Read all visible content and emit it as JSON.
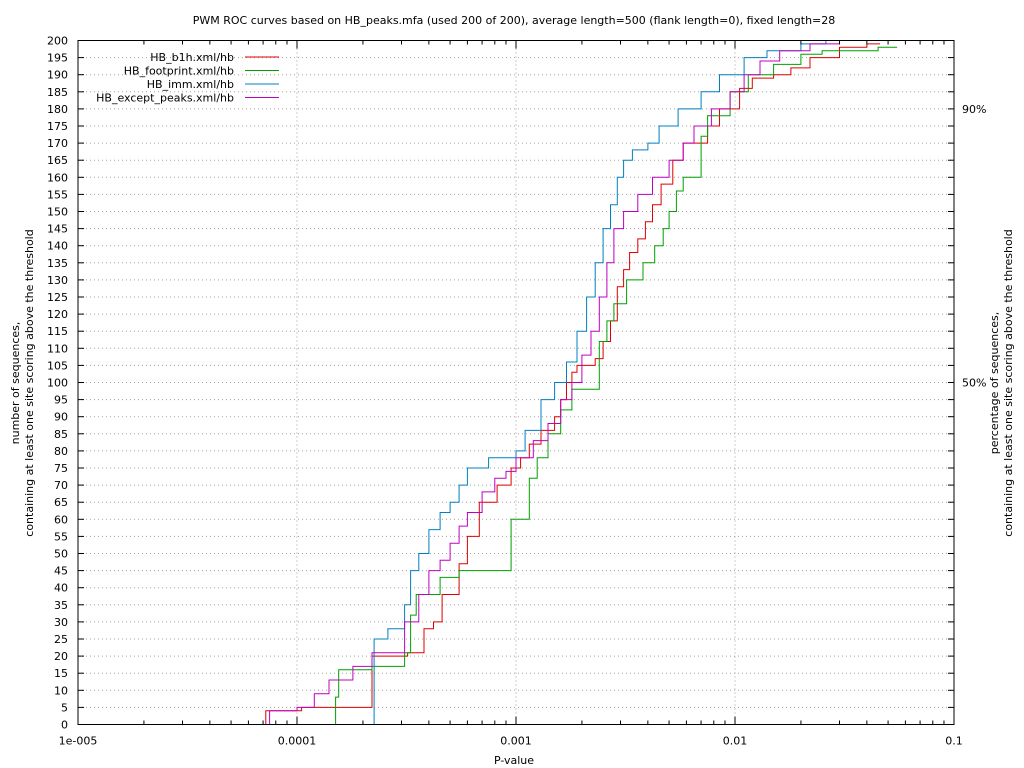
{
  "chart_data": {
    "type": "line",
    "title": "PWM ROC curves based on HB_peaks.mfa (used 200 of 200), average length=500 (flank length=0), fixed length=28",
    "xlabel": "P-value",
    "ylabel_line1": "number of sequences,",
    "ylabel_line2": "containing at least one site scoring above the threshold",
    "y2label_line1": "percentage of sequences,",
    "y2label_line2": "containing at least one site scoring above the threshold",
    "x_scale": "log",
    "xlim": [
      1e-05,
      0.1
    ],
    "ylim": [
      0,
      200
    ],
    "x_ticks": [
      1e-05,
      0.0001,
      0.001,
      0.01,
      0.1
    ],
    "x_tick_labels": [
      "1e-005",
      "0.0001",
      "0.001",
      "0.01",
      "0.1"
    ],
    "y_ticks": [
      0,
      5,
      10,
      15,
      20,
      25,
      30,
      35,
      40,
      45,
      50,
      55,
      60,
      65,
      70,
      75,
      80,
      85,
      90,
      95,
      100,
      105,
      110,
      115,
      120,
      125,
      130,
      135,
      140,
      145,
      150,
      155,
      160,
      165,
      170,
      175,
      180,
      185,
      190,
      195,
      200
    ],
    "y2_ticks": [
      {
        "value": 180,
        "label": "90%"
      },
      {
        "value": 100,
        "label": "50%"
      }
    ],
    "grid": true,
    "legend_position": "top-left",
    "series": [
      {
        "name": "HB_b1h.xml/hb",
        "color": "#e00000",
        "points": [
          [
            7.2e-05,
            0
          ],
          [
            7.2e-05,
            4
          ],
          [
            0.000105,
            4
          ],
          [
            0.000105,
            5
          ],
          [
            0.00022,
            5
          ],
          [
            0.00022,
            20
          ],
          [
            0.00032,
            20
          ],
          [
            0.00032,
            21
          ],
          [
            0.00038,
            21
          ],
          [
            0.00038,
            28
          ],
          [
            0.00042,
            28
          ],
          [
            0.00042,
            30
          ],
          [
            0.00046,
            30
          ],
          [
            0.00046,
            38
          ],
          [
            0.00055,
            38
          ],
          [
            0.00055,
            47
          ],
          [
            0.0006,
            47
          ],
          [
            0.0006,
            55
          ],
          [
            0.00068,
            55
          ],
          [
            0.00068,
            65
          ],
          [
            0.00082,
            65
          ],
          [
            0.00082,
            70
          ],
          [
            0.00095,
            70
          ],
          [
            0.00095,
            75
          ],
          [
            0.00105,
            75
          ],
          [
            0.00105,
            78
          ],
          [
            0.00115,
            78
          ],
          [
            0.00115,
            82
          ],
          [
            0.0013,
            82
          ],
          [
            0.0013,
            86
          ],
          [
            0.0015,
            86
          ],
          [
            0.0015,
            90
          ],
          [
            0.0016,
            90
          ],
          [
            0.0016,
            95
          ],
          [
            0.0017,
            95
          ],
          [
            0.0017,
            100
          ],
          [
            0.0018,
            100
          ],
          [
            0.0018,
            103
          ],
          [
            0.0019,
            103
          ],
          [
            0.0019,
            105
          ],
          [
            0.0023,
            105
          ],
          [
            0.0023,
            107
          ],
          [
            0.0025,
            107
          ],
          [
            0.0025,
            112
          ],
          [
            0.0027,
            112
          ],
          [
            0.0027,
            118
          ],
          [
            0.0029,
            118
          ],
          [
            0.0029,
            128
          ],
          [
            0.0031,
            128
          ],
          [
            0.0031,
            133
          ],
          [
            0.0033,
            133
          ],
          [
            0.0033,
            138
          ],
          [
            0.0036,
            138
          ],
          [
            0.0036,
            142
          ],
          [
            0.0039,
            142
          ],
          [
            0.0039,
            147
          ],
          [
            0.0042,
            147
          ],
          [
            0.0042,
            152
          ],
          [
            0.0046,
            152
          ],
          [
            0.0046,
            158
          ],
          [
            0.0052,
            158
          ],
          [
            0.0052,
            165
          ],
          [
            0.0058,
            165
          ],
          [
            0.0058,
            170
          ],
          [
            0.0075,
            170
          ],
          [
            0.0075,
            175
          ],
          [
            0.0085,
            175
          ],
          [
            0.0085,
            180
          ],
          [
            0.0105,
            180
          ],
          [
            0.0105,
            186
          ],
          [
            0.012,
            186
          ],
          [
            0.012,
            189
          ],
          [
            0.015,
            189
          ],
          [
            0.015,
            190
          ],
          [
            0.018,
            190
          ],
          [
            0.018,
            192
          ],
          [
            0.022,
            192
          ],
          [
            0.022,
            195
          ],
          [
            0.03,
            195
          ],
          [
            0.03,
            198
          ],
          [
            0.04,
            198
          ],
          [
            0.04,
            199
          ],
          [
            0.046,
            199
          ]
        ]
      },
      {
        "name": "HB_footprint.xml/hb",
        "color": "#00a000",
        "points": [
          [
            0.00015,
            0
          ],
          [
            0.00015,
            8
          ],
          [
            0.000155,
            8
          ],
          [
            0.000155,
            16
          ],
          [
            0.00022,
            16
          ],
          [
            0.00022,
            17
          ],
          [
            0.00031,
            17
          ],
          [
            0.00031,
            21
          ],
          [
            0.00033,
            21
          ],
          [
            0.00033,
            32
          ],
          [
            0.00035,
            32
          ],
          [
            0.00035,
            38
          ],
          [
            0.00045,
            38
          ],
          [
            0.00045,
            43
          ],
          [
            0.00055,
            43
          ],
          [
            0.00055,
            45
          ],
          [
            0.00095,
            45
          ],
          [
            0.00095,
            60
          ],
          [
            0.00115,
            60
          ],
          [
            0.00115,
            72
          ],
          [
            0.00125,
            72
          ],
          [
            0.00125,
            78
          ],
          [
            0.0014,
            78
          ],
          [
            0.0014,
            85
          ],
          [
            0.0016,
            85
          ],
          [
            0.0016,
            92
          ],
          [
            0.0018,
            92
          ],
          [
            0.0018,
            98
          ],
          [
            0.0024,
            98
          ],
          [
            0.0024,
            112
          ],
          [
            0.0026,
            112
          ],
          [
            0.0026,
            118
          ],
          [
            0.0028,
            118
          ],
          [
            0.0028,
            123
          ],
          [
            0.0032,
            123
          ],
          [
            0.0032,
            130
          ],
          [
            0.0038,
            130
          ],
          [
            0.0038,
            135
          ],
          [
            0.0043,
            135
          ],
          [
            0.0043,
            140
          ],
          [
            0.0047,
            140
          ],
          [
            0.0047,
            145
          ],
          [
            0.005,
            145
          ],
          [
            0.005,
            150
          ],
          [
            0.0054,
            150
          ],
          [
            0.0054,
            156
          ],
          [
            0.0058,
            156
          ],
          [
            0.0058,
            160
          ],
          [
            0.007,
            160
          ],
          [
            0.007,
            172
          ],
          [
            0.0075,
            172
          ],
          [
            0.0075,
            178
          ],
          [
            0.0095,
            178
          ],
          [
            0.0095,
            185
          ],
          [
            0.0115,
            185
          ],
          [
            0.0115,
            190
          ],
          [
            0.015,
            190
          ],
          [
            0.015,
            193
          ],
          [
            0.02,
            193
          ],
          [
            0.02,
            196
          ],
          [
            0.025,
            196
          ],
          [
            0.025,
            197
          ],
          [
            0.045,
            197
          ],
          [
            0.045,
            198
          ],
          [
            0.055,
            198
          ]
        ]
      },
      {
        "name": "HB_imm.xml/hb",
        "color": "#0080c0",
        "points": [
          [
            0.000225,
            0
          ],
          [
            0.000225,
            25
          ],
          [
            0.00026,
            25
          ],
          [
            0.00026,
            28
          ],
          [
            0.00031,
            28
          ],
          [
            0.00031,
            35
          ],
          [
            0.00033,
            35
          ],
          [
            0.00033,
            45
          ],
          [
            0.00036,
            45
          ],
          [
            0.00036,
            50
          ],
          [
            0.0004,
            50
          ],
          [
            0.0004,
            57
          ],
          [
            0.00045,
            57
          ],
          [
            0.00045,
            62
          ],
          [
            0.0005,
            62
          ],
          [
            0.0005,
            65
          ],
          [
            0.00055,
            65
          ],
          [
            0.00055,
            70
          ],
          [
            0.0006,
            70
          ],
          [
            0.0006,
            75
          ],
          [
            0.00075,
            75
          ],
          [
            0.00075,
            78
          ],
          [
            0.001,
            78
          ],
          [
            0.001,
            80
          ],
          [
            0.0011,
            80
          ],
          [
            0.0011,
            86
          ],
          [
            0.0013,
            86
          ],
          [
            0.0013,
            95
          ],
          [
            0.0015,
            95
          ],
          [
            0.0015,
            100
          ],
          [
            0.0017,
            100
          ],
          [
            0.0017,
            106
          ],
          [
            0.0019,
            106
          ],
          [
            0.0019,
            115
          ],
          [
            0.0021,
            115
          ],
          [
            0.0021,
            125
          ],
          [
            0.0023,
            125
          ],
          [
            0.0023,
            135
          ],
          [
            0.0025,
            135
          ],
          [
            0.0025,
            145
          ],
          [
            0.0027,
            145
          ],
          [
            0.0027,
            152
          ],
          [
            0.0029,
            152
          ],
          [
            0.0029,
            160
          ],
          [
            0.0031,
            160
          ],
          [
            0.0031,
            165
          ],
          [
            0.0034,
            165
          ],
          [
            0.0034,
            168
          ],
          [
            0.004,
            168
          ],
          [
            0.004,
            170
          ],
          [
            0.0045,
            170
          ],
          [
            0.0045,
            175
          ],
          [
            0.0055,
            175
          ],
          [
            0.0055,
            180
          ],
          [
            0.007,
            180
          ],
          [
            0.007,
            185
          ],
          [
            0.0085,
            185
          ],
          [
            0.0085,
            190
          ],
          [
            0.011,
            190
          ],
          [
            0.011,
            195
          ],
          [
            0.014,
            195
          ],
          [
            0.014,
            197
          ],
          [
            0.02,
            197
          ],
          [
            0.02,
            199
          ],
          [
            0.026,
            199
          ],
          [
            0.026,
            200
          ]
        ]
      },
      {
        "name": "HB_except_peaks.xml/hb",
        "color": "#c000c0",
        "points": [
          [
            7.5e-05,
            0
          ],
          [
            7.5e-05,
            4
          ],
          [
            0.0001,
            4
          ],
          [
            0.0001,
            5
          ],
          [
            0.00012,
            5
          ],
          [
            0.00012,
            9
          ],
          [
            0.00014,
            9
          ],
          [
            0.00014,
            13
          ],
          [
            0.00018,
            13
          ],
          [
            0.00018,
            17
          ],
          [
            0.00022,
            17
          ],
          [
            0.00022,
            21
          ],
          [
            0.00031,
            21
          ],
          [
            0.00031,
            30
          ],
          [
            0.00036,
            30
          ],
          [
            0.00036,
            38
          ],
          [
            0.0004,
            38
          ],
          [
            0.0004,
            45
          ],
          [
            0.00045,
            45
          ],
          [
            0.00045,
            48
          ],
          [
            0.0005,
            48
          ],
          [
            0.0005,
            53
          ],
          [
            0.00055,
            53
          ],
          [
            0.00055,
            58
          ],
          [
            0.0006,
            58
          ],
          [
            0.0006,
            62
          ],
          [
            0.0007,
            62
          ],
          [
            0.0007,
            68
          ],
          [
            0.0008,
            68
          ],
          [
            0.0008,
            72
          ],
          [
            0.0009,
            72
          ],
          [
            0.0009,
            74
          ],
          [
            0.001,
            74
          ],
          [
            0.001,
            78
          ],
          [
            0.0012,
            78
          ],
          [
            0.0012,
            83
          ],
          [
            0.0014,
            83
          ],
          [
            0.0014,
            88
          ],
          [
            0.0016,
            88
          ],
          [
            0.0016,
            95
          ],
          [
            0.0018,
            95
          ],
          [
            0.0018,
            100
          ],
          [
            0.002,
            100
          ],
          [
            0.002,
            108
          ],
          [
            0.0022,
            108
          ],
          [
            0.0022,
            115
          ],
          [
            0.0024,
            115
          ],
          [
            0.0024,
            125
          ],
          [
            0.0026,
            125
          ],
          [
            0.0026,
            135
          ],
          [
            0.0028,
            135
          ],
          [
            0.0028,
            145
          ],
          [
            0.0031,
            145
          ],
          [
            0.0031,
            150
          ],
          [
            0.0036,
            150
          ],
          [
            0.0036,
            155
          ],
          [
            0.0042,
            155
          ],
          [
            0.0042,
            160
          ],
          [
            0.005,
            160
          ],
          [
            0.005,
            165
          ],
          [
            0.0058,
            165
          ],
          [
            0.0058,
            170
          ],
          [
            0.0065,
            170
          ],
          [
            0.0065,
            175
          ],
          [
            0.0078,
            175
          ],
          [
            0.0078,
            180
          ],
          [
            0.0095,
            180
          ],
          [
            0.0095,
            185
          ],
          [
            0.011,
            185
          ],
          [
            0.011,
            190
          ],
          [
            0.013,
            190
          ],
          [
            0.013,
            194
          ],
          [
            0.016,
            194
          ],
          [
            0.016,
            197
          ],
          [
            0.022,
            197
          ],
          [
            0.022,
            199
          ],
          [
            0.03,
            199
          ],
          [
            0.03,
            200
          ]
        ]
      }
    ]
  }
}
